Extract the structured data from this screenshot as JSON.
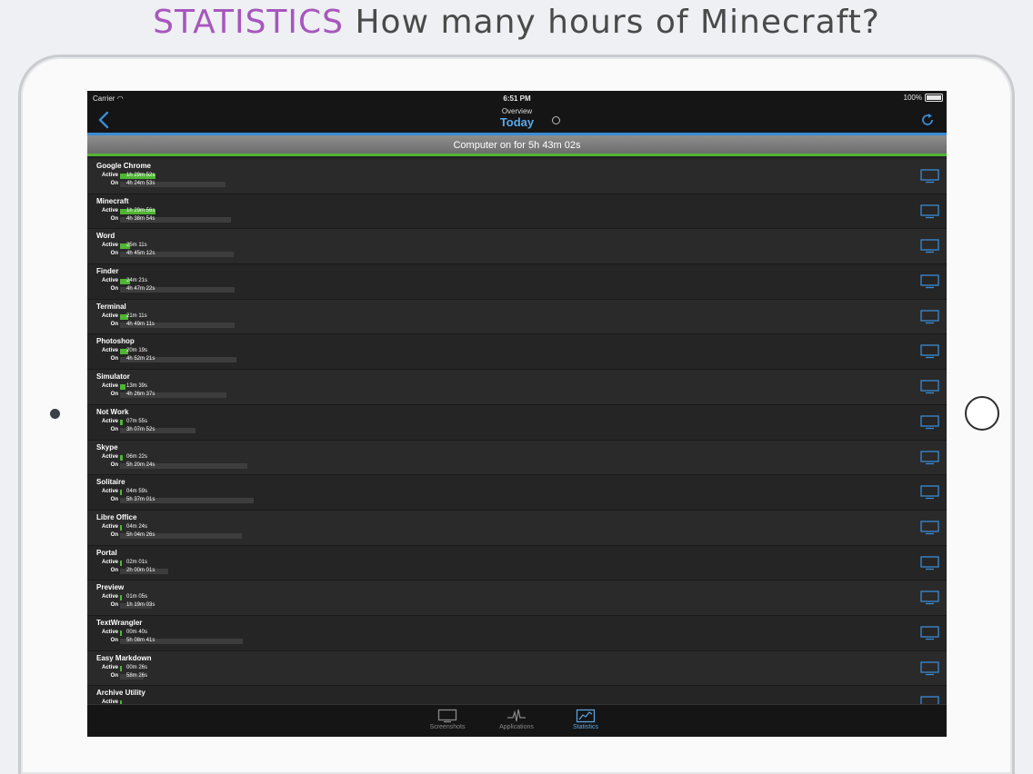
{
  "headline": {
    "accent": "STATISTICS",
    "rest": "How many hours of Minecraft?"
  },
  "status": {
    "carrier": "Carrier",
    "time": "6:51 PM",
    "battery": "100%"
  },
  "nav": {
    "subtitle": "Overview",
    "title": "Today"
  },
  "summary": {
    "text": "Computer on for 5h 43m 02s"
  },
  "labels": {
    "active": "Active",
    "on": "On"
  },
  "apps": [
    {
      "name": "Google Chrome",
      "active": "1h 29m 52s",
      "on": "4h 24m 53s",
      "active_frac": 0.26,
      "on_frac": 0.77
    },
    {
      "name": "Minecraft",
      "active": "1h 29m 56s",
      "on": "4h 38m 54s",
      "active_frac": 0.26,
      "on_frac": 0.81
    },
    {
      "name": "Word",
      "active": "25m 11s",
      "on": "4h 45m 12s",
      "active_frac": 0.07,
      "on_frac": 0.83
    },
    {
      "name": "Finder",
      "active": "24m 21s",
      "on": "4h 47m 22s",
      "active_frac": 0.07,
      "on_frac": 0.84
    },
    {
      "name": "Terminal",
      "active": "21m 11s",
      "on": "4h 49m 11s",
      "active_frac": 0.06,
      "on_frac": 0.84
    },
    {
      "name": "Photoshop",
      "active": "20m 19s",
      "on": "4h 52m 21s",
      "active_frac": 0.06,
      "on_frac": 0.85
    },
    {
      "name": "Simulator",
      "active": "13m 39s",
      "on": "4h 26m 37s",
      "active_frac": 0.04,
      "on_frac": 0.78
    },
    {
      "name": "Not Work",
      "active": "07m 55s",
      "on": "3h 07m 52s",
      "active_frac": 0.023,
      "on_frac": 0.55
    },
    {
      "name": "Skype",
      "active": "06m 22s",
      "on": "5h 20m 24s",
      "active_frac": 0.019,
      "on_frac": 0.93
    },
    {
      "name": "Solitaire",
      "active": "04m 59s",
      "on": "5h 37m 01s",
      "active_frac": 0.015,
      "on_frac": 0.98
    },
    {
      "name": "Libre Office",
      "active": "04m 24s",
      "on": "5h 04m 26s",
      "active_frac": 0.013,
      "on_frac": 0.89
    },
    {
      "name": "Portal",
      "active": "02m 01s",
      "on": "2h 00m 01s",
      "active_frac": 0.006,
      "on_frac": 0.35
    },
    {
      "name": "Preview",
      "active": "01m 05s",
      "on": "1h 19m 03s",
      "active_frac": 0.003,
      "on_frac": 0.23
    },
    {
      "name": "TextWrangler",
      "active": "00m 40s",
      "on": "5h 08m 41s",
      "active_frac": 0.002,
      "on_frac": 0.9
    },
    {
      "name": "Easy Markdown",
      "active": "00m 26s",
      "on": "58m 26s",
      "active_frac": 0.001,
      "on_frac": 0.17
    },
    {
      "name": "Archive Utility",
      "active": "",
      "on": "",
      "active_frac": 0.001,
      "on_frac": 0.1
    }
  ],
  "tabs": [
    {
      "label": "Screenshots",
      "icon": "monitor-icon"
    },
    {
      "label": "Applications",
      "icon": "pulse-icon"
    },
    {
      "label": "Statistics",
      "icon": "chart-icon",
      "selected": true
    }
  ],
  "colors": {
    "accent_purple": "#a757bd",
    "active_green": "#4fb534",
    "ios_blue": "#3a8bd4"
  }
}
